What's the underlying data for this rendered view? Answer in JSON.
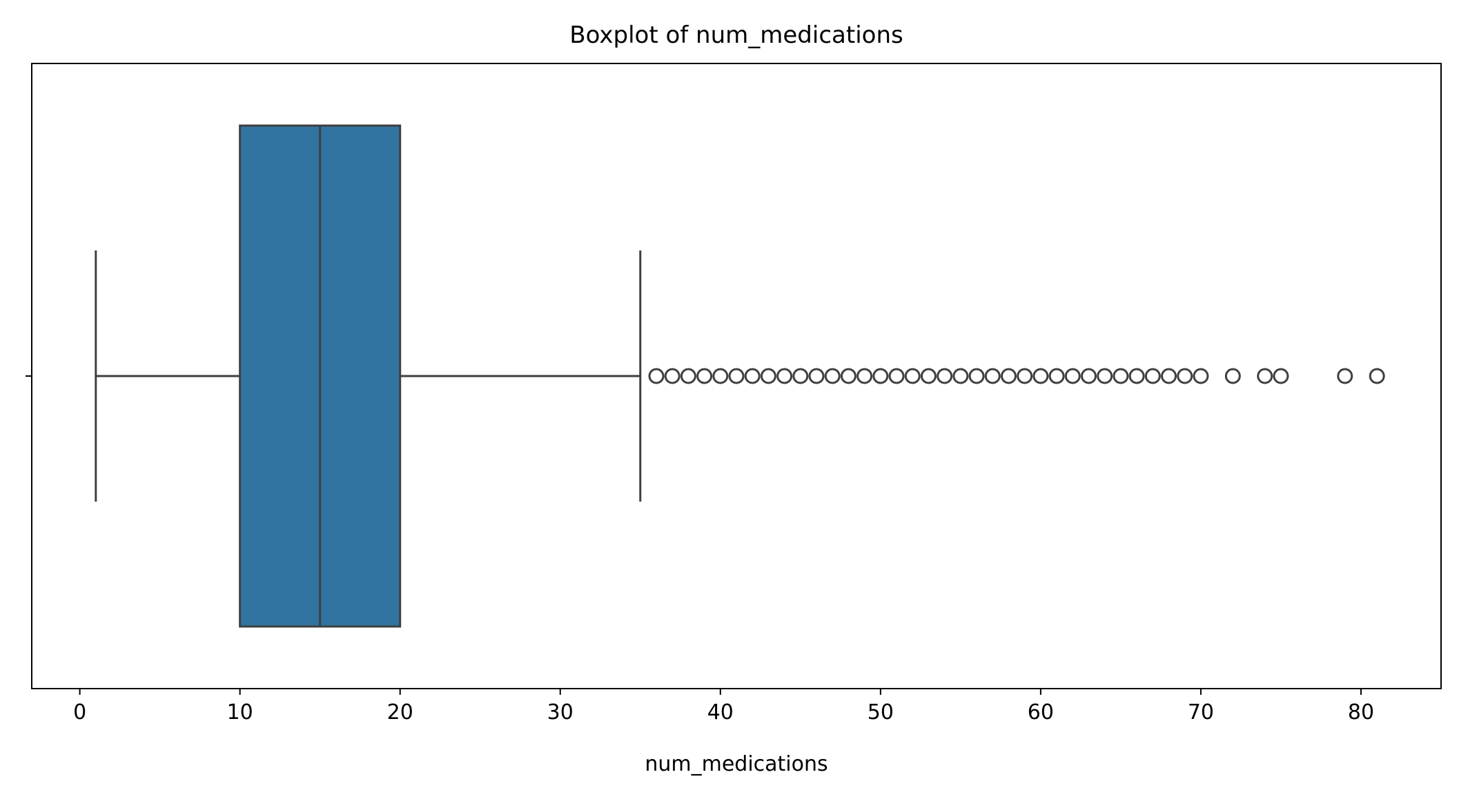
{
  "chart_data": {
    "type": "boxplot",
    "orientation": "horizontal",
    "title": "Boxplot of num_medications",
    "xlabel": "num_medications",
    "ylabel": "",
    "xlim": [
      -3,
      85
    ],
    "xticks": [
      0,
      10,
      20,
      30,
      40,
      50,
      60,
      70,
      80
    ],
    "grid": false,
    "box": {
      "whisker_low": 1,
      "q1": 10,
      "median": 15,
      "q3": 20,
      "whisker_high": 35,
      "outliers": [
        36,
        37,
        38,
        39,
        40,
        41,
        42,
        43,
        44,
        45,
        46,
        47,
        48,
        49,
        50,
        51,
        52,
        53,
        54,
        55,
        56,
        57,
        58,
        59,
        60,
        61,
        62,
        63,
        64,
        65,
        66,
        67,
        68,
        69,
        70,
        72,
        74,
        75,
        79,
        81
      ]
    },
    "colors": {
      "box_fill": "#3274a1",
      "lines": "#3f3f3f"
    }
  }
}
